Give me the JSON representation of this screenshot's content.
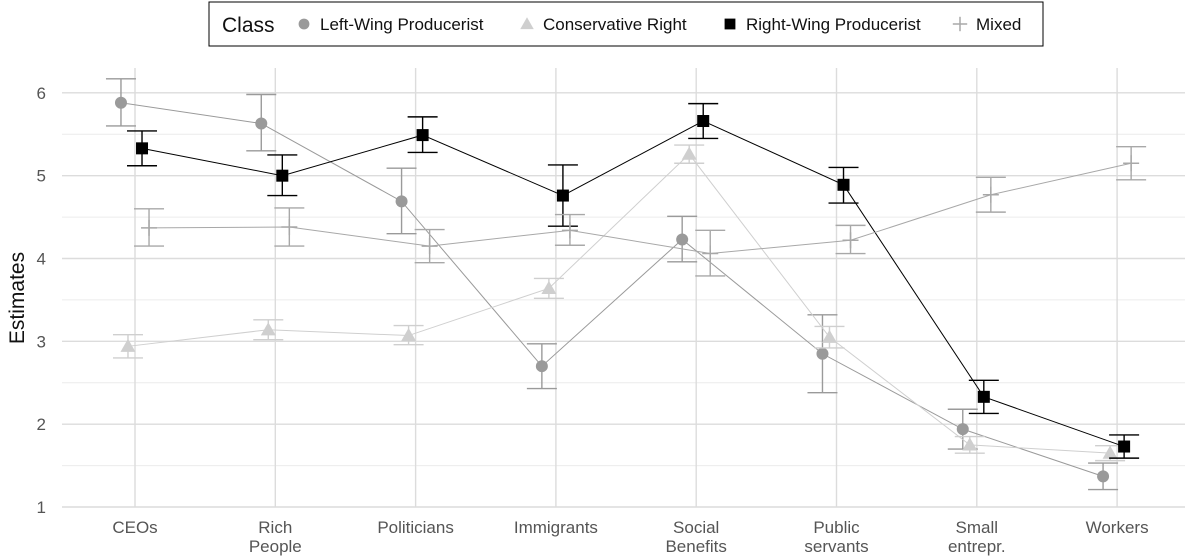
{
  "chart_data": {
    "type": "line",
    "ylabel": "Estimates",
    "ylim": [
      1,
      6.3
    ],
    "yticks": [
      1,
      2,
      3,
      4,
      5,
      6
    ],
    "grid": true,
    "legend_position": "top",
    "legend_title": "Class",
    "categories": [
      [
        "CEOs"
      ],
      [
        "Rich",
        "People"
      ],
      [
        "Politicians"
      ],
      [
        "Immigrants"
      ],
      [
        "Social",
        "Benefits"
      ],
      [
        "Public",
        "servants"
      ],
      [
        "Small",
        "entrepr."
      ],
      [
        "Workers"
      ]
    ],
    "series": [
      {
        "name": "Left-Wing Producerist",
        "marker": "circle",
        "color": "#9a9a9a",
        "offset": -0.1,
        "values": [
          5.88,
          5.63,
          4.69,
          2.7,
          4.23,
          2.85,
          1.94,
          1.37
        ],
        "lower": [
          5.6,
          5.3,
          4.3,
          2.43,
          3.96,
          2.38,
          1.7,
          1.21
        ],
        "upper": [
          6.17,
          5.98,
          5.09,
          2.97,
          4.51,
          3.32,
          2.18,
          1.53
        ]
      },
      {
        "name": "Conservative Right",
        "marker": "triangle",
        "color": "#cfcfcf",
        "offset": -0.05,
        "values": [
          2.94,
          3.14,
          3.07,
          3.64,
          5.26,
          3.05,
          1.75,
          1.65
        ],
        "lower": [
          2.8,
          3.02,
          2.96,
          3.52,
          5.15,
          2.92,
          1.65,
          1.56
        ],
        "upper": [
          3.08,
          3.26,
          3.19,
          3.76,
          5.37,
          3.18,
          1.85,
          1.74
        ]
      },
      {
        "name": "Right-Wing Producerist",
        "marker": "square",
        "color": "#000000",
        "offset": 0.05,
        "values": [
          5.33,
          5.0,
          5.49,
          4.76,
          5.66,
          4.89,
          2.33,
          1.73
        ],
        "lower": [
          5.12,
          4.76,
          5.28,
          4.39,
          5.45,
          4.67,
          2.13,
          1.59
        ],
        "upper": [
          5.54,
          5.25,
          5.71,
          5.13,
          5.87,
          5.1,
          2.53,
          1.87
        ]
      },
      {
        "name": "Mixed",
        "marker": "plus",
        "color": "#a8a8a8",
        "offset": 0.1,
        "values": [
          4.37,
          4.38,
          4.15,
          4.34,
          4.06,
          4.22,
          4.77,
          5.15
        ],
        "lower": [
          4.15,
          4.15,
          3.95,
          4.16,
          3.79,
          4.06,
          4.56,
          4.95
        ],
        "upper": [
          4.6,
          4.61,
          4.35,
          4.53,
          4.34,
          4.4,
          4.98,
          5.35
        ]
      }
    ]
  }
}
